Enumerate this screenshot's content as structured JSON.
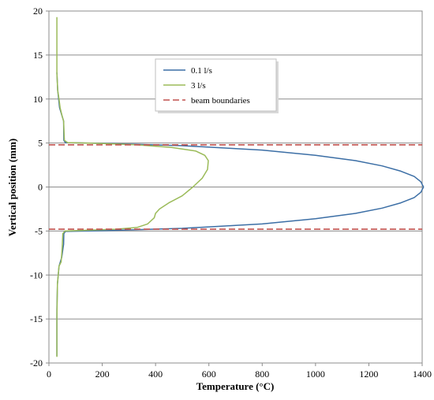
{
  "chart_data": {
    "type": "line",
    "title": "",
    "xlabel": "Temperature  (°C)",
    "ylabel": "Vertical position (mm)",
    "xlim": [
      0,
      1400
    ],
    "ylim": [
      -20,
      20
    ],
    "x_ticks": [
      0,
      200,
      400,
      600,
      800,
      1000,
      1200,
      1400
    ],
    "y_ticks": [
      -20,
      -15,
      -10,
      -5,
      0,
      5,
      10,
      15,
      20
    ],
    "grid": "horizontal",
    "legend_position": "top-center",
    "series": [
      {
        "name": "0.1 l/s",
        "color": "#3b6ea5",
        "dash": "solid",
        "points": [
          [
            30,
            -19.2
          ],
          [
            30,
            -14
          ],
          [
            32,
            -11
          ],
          [
            38,
            -9
          ],
          [
            48,
            -8
          ],
          [
            55,
            -6.5
          ],
          [
            56,
            -5.3
          ],
          [
            62,
            -5.05
          ],
          [
            200,
            -4.97
          ],
          [
            500,
            -4.7
          ],
          [
            800,
            -4.2
          ],
          [
            1000,
            -3.6
          ],
          [
            1150,
            -3.0
          ],
          [
            1250,
            -2.4
          ],
          [
            1320,
            -1.8
          ],
          [
            1370,
            -1.2
          ],
          [
            1395,
            -0.6
          ],
          [
            1405,
            0
          ],
          [
            1395,
            0.6
          ],
          [
            1370,
            1.2
          ],
          [
            1320,
            1.8
          ],
          [
            1250,
            2.4
          ],
          [
            1150,
            3.0
          ],
          [
            1000,
            3.6
          ],
          [
            800,
            4.2
          ],
          [
            500,
            4.7
          ],
          [
            200,
            4.97
          ],
          [
            62,
            5.05
          ],
          [
            56,
            5.3
          ],
          [
            55,
            7.5
          ],
          [
            50,
            8
          ],
          [
            40,
            9
          ],
          [
            33,
            11
          ],
          [
            30,
            13
          ]
        ]
      },
      {
        "name": "3 l/s",
        "color": "#9bbb59",
        "dash": "solid",
        "points": [
          [
            30,
            -19.3
          ],
          [
            30,
            -15
          ],
          [
            32,
            -11
          ],
          [
            38,
            -9
          ],
          [
            46,
            -8.5
          ],
          [
            50,
            -6.8
          ],
          [
            52,
            -5.3
          ],
          [
            60,
            -5.0
          ],
          [
            150,
            -4.9
          ],
          [
            250,
            -4.8
          ],
          [
            330,
            -4.6
          ],
          [
            370,
            -4.2
          ],
          [
            395,
            -3.5
          ],
          [
            400,
            -3.0
          ],
          [
            415,
            -2.5
          ],
          [
            450,
            -1.8
          ],
          [
            500,
            -1.0
          ],
          [
            540,
            0
          ],
          [
            575,
            1.0
          ],
          [
            595,
            2.0
          ],
          [
            598,
            3.0
          ],
          [
            585,
            3.6
          ],
          [
            550,
            4.1
          ],
          [
            460,
            4.5
          ],
          [
            330,
            4.8
          ],
          [
            200,
            4.95
          ],
          [
            70,
            5.05
          ],
          [
            58,
            5.3
          ],
          [
            55,
            7.5
          ],
          [
            50,
            8
          ],
          [
            42,
            9
          ],
          [
            38,
            10
          ],
          [
            33,
            11
          ],
          [
            30,
            13
          ],
          [
            30,
            19.3
          ]
        ]
      },
      {
        "name": "beam boundaries",
        "color": "#c0504d",
        "dash": "dashed",
        "points": [
          [
            0,
            4.8
          ],
          [
            1400,
            4.8
          ]
        ]
      },
      {
        "name": "",
        "color": "#c0504d",
        "dash": "dashed",
        "points": [
          [
            0,
            -4.8
          ],
          [
            1400,
            -4.8
          ]
        ]
      }
    ]
  }
}
